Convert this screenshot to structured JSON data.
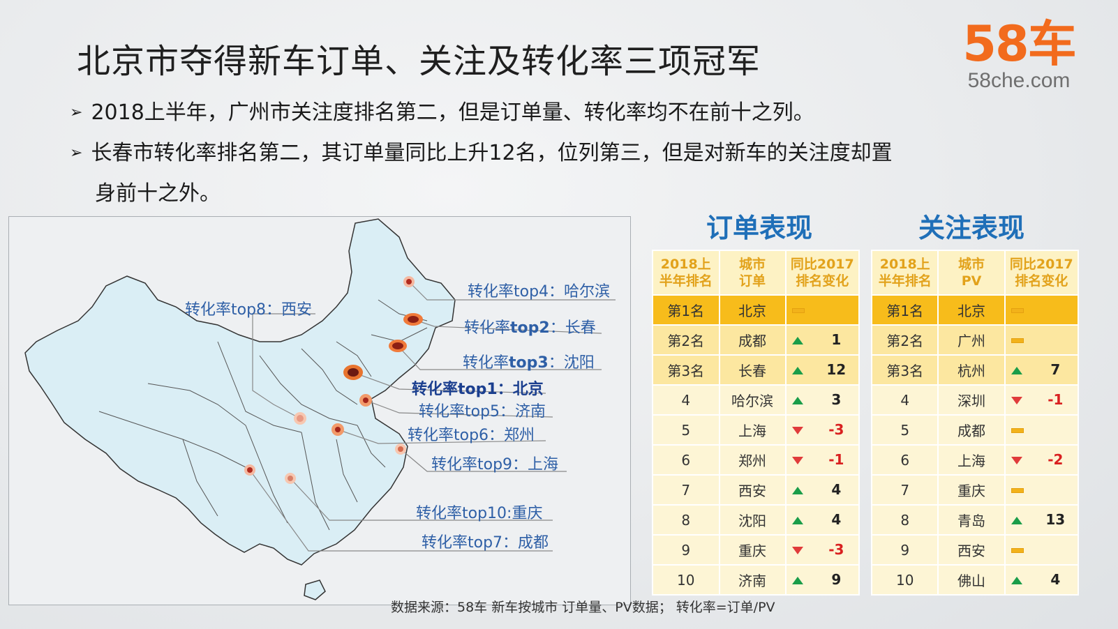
{
  "title": "北京市夺得新车订单、关注及转化率三项冠军",
  "logo": {
    "main": "58车",
    "sub": "58che.com"
  },
  "bullets": [
    "2018上半年，广州市关注度排名第二，但是订单量、转化率均不在前十之列。",
    "长春市转化率排名第二，其订单量同比上升12名，位列第三，但是对新车的关注度却置",
    "身前十之外。"
  ],
  "map": {
    "labels": {
      "top4": "转化率top4：哈尔滨",
      "top8": "转化率top8：西安",
      "top2_pre": "转化率",
      "top2_bold": "top2",
      "top2_post": "：长春",
      "top3_pre": "转化率",
      "top3_bold": "top3",
      "top3_post": "：沈阳",
      "top1": "转化率top1：北京",
      "top5": "转化率top5：济南",
      "top6": "转化率top6：郑州",
      "top9": "转化率top9：上海",
      "top10": "转化率top10:重庆",
      "top7": "转化率top7：成都"
    }
  },
  "orders": {
    "title": "订单表现",
    "headers": [
      "2018上\n半年排名",
      "城市\n订单",
      "同比2017\n排名变化"
    ],
    "rows": [
      {
        "rank": "第1名",
        "city": "北京",
        "dir": "flat",
        "value": ""
      },
      {
        "rank": "第2名",
        "city": "成都",
        "dir": "up",
        "value": "1"
      },
      {
        "rank": "第3名",
        "city": "长春",
        "dir": "up",
        "value": "12"
      },
      {
        "rank": "4",
        "city": "哈尔滨",
        "dir": "up",
        "value": "3"
      },
      {
        "rank": "5",
        "city": "上海",
        "dir": "down",
        "value": "-3"
      },
      {
        "rank": "6",
        "city": "郑州",
        "dir": "down",
        "value": "-1"
      },
      {
        "rank": "7",
        "city": "西安",
        "dir": "up",
        "value": "4"
      },
      {
        "rank": "8",
        "city": "沈阳",
        "dir": "up",
        "value": "4"
      },
      {
        "rank": "9",
        "city": "重庆",
        "dir": "down",
        "value": "-3"
      },
      {
        "rank": "10",
        "city": "济南",
        "dir": "up",
        "value": "9"
      }
    ]
  },
  "attention": {
    "title": "关注表现",
    "headers": [
      "2018上\n半年排名",
      "城市\nPV",
      "同比2017\n排名变化"
    ],
    "rows": [
      {
        "rank": "第1名",
        "city": "北京",
        "dir": "flat",
        "value": ""
      },
      {
        "rank": "第2名",
        "city": "广州",
        "dir": "flat",
        "value": ""
      },
      {
        "rank": "第3名",
        "city": "杭州",
        "dir": "up",
        "value": "7"
      },
      {
        "rank": "4",
        "city": "深圳",
        "dir": "down",
        "value": "-1"
      },
      {
        "rank": "5",
        "city": "成都",
        "dir": "flat",
        "value": ""
      },
      {
        "rank": "6",
        "city": "上海",
        "dir": "down",
        "value": "-2"
      },
      {
        "rank": "7",
        "city": "重庆",
        "dir": "flat",
        "value": ""
      },
      {
        "rank": "8",
        "city": "青岛",
        "dir": "up",
        "value": "13"
      },
      {
        "rank": "9",
        "city": "西安",
        "dir": "flat",
        "value": ""
      },
      {
        "rank": "10",
        "city": "佛山",
        "dir": "up",
        "value": "4"
      }
    ]
  },
  "source": "数据来源：58车 新车按城市 订单量、PV数据；  转化率=订单/PV",
  "colors": {
    "accent": "#1f6fb8",
    "logo": "#f26b1d",
    "gold": "#f7bc1b",
    "up": "#1a9d49",
    "down": "#e03b3b"
  }
}
